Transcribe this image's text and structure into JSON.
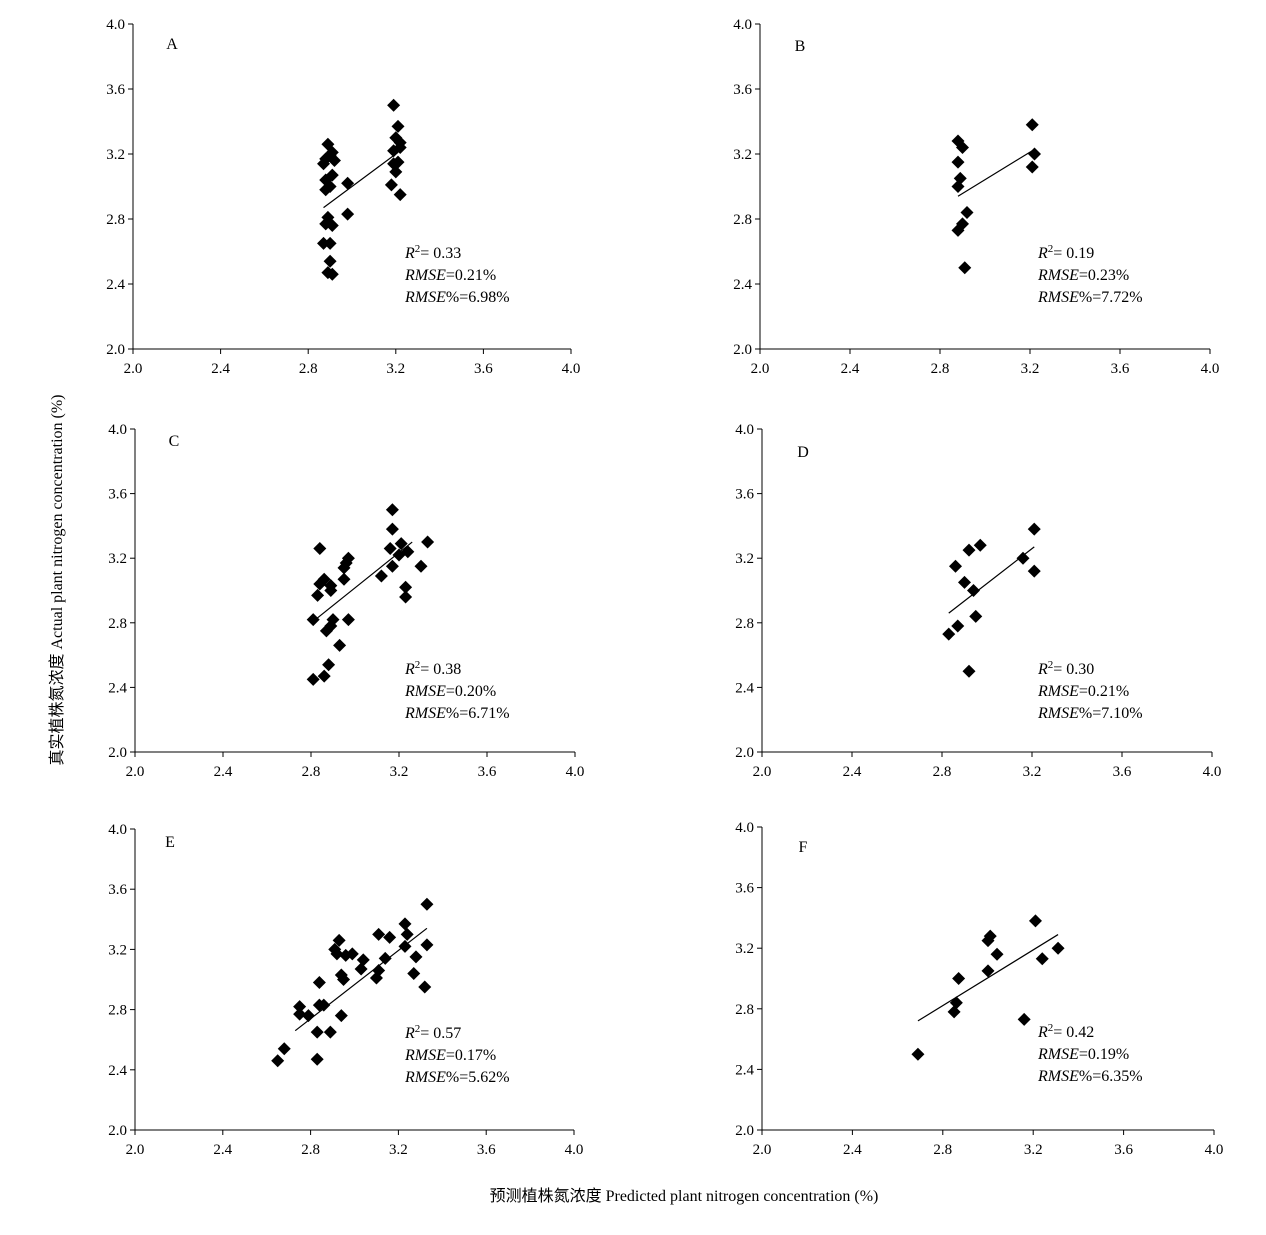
{
  "figure": {
    "xlabel": "预测植株氮浓度 Predicted plant nitrogen concentration (%)",
    "ylabel": "真实植株氮浓度 Actual plant nitrogen concentration (%)"
  },
  "chart_data": [
    {
      "type": "scatter",
      "panel": "A",
      "xlim": [
        2.0,
        4.0
      ],
      "ylim": [
        2.0,
        4.0
      ],
      "xticks": [
        "2.0",
        "2.4",
        "2.8",
        "3.2",
        "3.6",
        "4.0"
      ],
      "yticks": [
        "2.0",
        "2.4",
        "2.8",
        "3.2",
        "3.6",
        "4.0"
      ],
      "stats": {
        "r2": "= 0.33",
        "rmse": "=0.21%",
        "rmse_pct": "%=6.98%"
      },
      "fit": {
        "x": [
          2.87,
          3.21
        ],
        "y": [
          2.87,
          3.21
        ]
      },
      "points": [
        [
          2.89,
          3.26
        ],
        [
          2.91,
          3.21
        ],
        [
          2.88,
          3.17
        ],
        [
          2.92,
          3.16
        ],
        [
          2.87,
          3.14
        ],
        [
          2.9,
          3.19
        ],
        [
          2.91,
          3.07
        ],
        [
          2.88,
          3.04
        ],
        [
          2.9,
          3.0
        ],
        [
          2.88,
          2.98
        ],
        [
          2.89,
          2.81
        ],
        [
          2.88,
          2.77
        ],
        [
          2.91,
          2.76
        ],
        [
          2.87,
          2.65
        ],
        [
          2.9,
          2.65
        ],
        [
          2.9,
          2.54
        ],
        [
          2.89,
          2.47
        ],
        [
          2.91,
          2.46
        ],
        [
          2.98,
          3.02
        ],
        [
          2.98,
          2.83
        ],
        [
          3.19,
          3.5
        ],
        [
          3.21,
          3.37
        ],
        [
          3.2,
          3.3
        ],
        [
          3.22,
          3.27
        ],
        [
          3.19,
          3.22
        ],
        [
          3.22,
          3.24
        ],
        [
          3.21,
          3.15
        ],
        [
          3.19,
          3.14
        ],
        [
          3.2,
          3.09
        ],
        [
          3.18,
          3.01
        ],
        [
          3.22,
          2.95
        ]
      ]
    },
    {
      "type": "scatter",
      "panel": "B",
      "xlim": [
        2.0,
        4.0
      ],
      "ylim": [
        2.0,
        4.0
      ],
      "xticks": [
        "2.0",
        "2.4",
        "2.8",
        "3.2",
        "3.6",
        "4.0"
      ],
      "yticks": [
        "2.0",
        "2.4",
        "2.8",
        "3.2",
        "3.6",
        "4.0"
      ],
      "stats": {
        "r2": "= 0.19",
        "rmse": "=0.23%",
        "rmse_pct": "%=7.72%"
      },
      "fit": {
        "x": [
          2.88,
          3.21
        ],
        "y": [
          2.94,
          3.22
        ]
      },
      "points": [
        [
          2.88,
          3.28
        ],
        [
          2.9,
          3.24
        ],
        [
          2.88,
          3.15
        ],
        [
          2.89,
          3.05
        ],
        [
          2.88,
          3.0
        ],
        [
          2.92,
          2.84
        ],
        [
          2.9,
          2.77
        ],
        [
          2.88,
          2.73
        ],
        [
          2.91,
          2.5
        ],
        [
          3.21,
          3.38
        ],
        [
          3.22,
          3.2
        ],
        [
          3.21,
          3.12
        ]
      ]
    },
    {
      "type": "scatter",
      "panel": "C",
      "xlim": [
        2.0,
        4.0
      ],
      "ylim": [
        2.0,
        4.0
      ],
      "xticks": [
        "2.0",
        "2.4",
        "2.8",
        "3.2",
        "3.6",
        "4.0"
      ],
      "yticks": [
        "2.0",
        "2.4",
        "2.8",
        "3.2",
        "3.6",
        "4.0"
      ],
      "stats": {
        "r2": "= 0.38",
        "rmse": "=0.20%",
        "rmse_pct": "%=6.71%"
      },
      "fit": {
        "x": [
          2.82,
          3.26
        ],
        "y": [
          2.82,
          3.3
        ]
      },
      "points": [
        [
          2.84,
          3.26
        ],
        [
          2.97,
          3.2
        ],
        [
          2.96,
          3.17
        ],
        [
          2.95,
          3.14
        ],
        [
          2.95,
          3.07
        ],
        [
          2.86,
          3.07
        ],
        [
          2.84,
          3.04
        ],
        [
          2.89,
          3.03
        ],
        [
          2.89,
          3.0
        ],
        [
          2.83,
          2.97
        ],
        [
          2.81,
          2.82
        ],
        [
          2.9,
          2.82
        ],
        [
          2.97,
          2.82
        ],
        [
          2.89,
          2.78
        ],
        [
          2.87,
          2.75
        ],
        [
          2.93,
          2.66
        ],
        [
          2.88,
          2.54
        ],
        [
          2.86,
          2.47
        ],
        [
          2.81,
          2.45
        ],
        [
          3.17,
          3.5
        ],
        [
          3.17,
          3.38
        ],
        [
          3.21,
          3.29
        ],
        [
          3.16,
          3.26
        ],
        [
          3.2,
          3.22
        ],
        [
          3.24,
          3.24
        ],
        [
          3.33,
          3.3
        ],
        [
          3.17,
          3.15
        ],
        [
          3.3,
          3.15
        ],
        [
          3.12,
          3.09
        ],
        [
          3.23,
          3.02
        ],
        [
          3.23,
          2.96
        ]
      ]
    },
    {
      "type": "scatter",
      "panel": "D",
      "xlim": [
        2.0,
        4.0
      ],
      "ylim": [
        2.0,
        4.0
      ],
      "xticks": [
        "2.0",
        "2.4",
        "2.8",
        "3.2",
        "3.6",
        "4.0"
      ],
      "yticks": [
        "2.0",
        "2.4",
        "2.8",
        "3.2",
        "3.6",
        "4.0"
      ],
      "stats": {
        "r2": "= 0.30",
        "rmse": "=0.21%",
        "rmse_pct": "%=7.10%"
      },
      "fit": {
        "x": [
          2.83,
          3.21
        ],
        "y": [
          2.86,
          3.27
        ]
      },
      "points": [
        [
          2.97,
          3.28
        ],
        [
          2.92,
          3.25
        ],
        [
          2.86,
          3.15
        ],
        [
          2.9,
          3.05
        ],
        [
          2.94,
          3.0
        ],
        [
          2.95,
          2.84
        ],
        [
          2.87,
          2.78
        ],
        [
          2.83,
          2.73
        ],
        [
          2.92,
          2.5
        ],
        [
          3.21,
          3.38
        ],
        [
          3.16,
          3.2
        ],
        [
          3.21,
          3.12
        ]
      ]
    },
    {
      "type": "scatter",
      "panel": "E",
      "xlim": [
        2.0,
        4.0
      ],
      "ylim": [
        2.0,
        4.0
      ],
      "xticks": [
        "2.0",
        "2.4",
        "2.8",
        "3.2",
        "3.6",
        "4.0"
      ],
      "yticks": [
        "2.0",
        "2.4",
        "2.8",
        "3.2",
        "3.6",
        "4.0"
      ],
      "stats": {
        "r2": "= 0.57",
        "rmse": "=0.17%",
        "rmse_pct": "%=5.62%"
      },
      "fit": {
        "x": [
          2.73,
          3.33
        ],
        "y": [
          2.66,
          3.34
        ]
      },
      "points": [
        [
          3.33,
          3.5
        ],
        [
          3.23,
          3.37
        ],
        [
          3.24,
          3.3
        ],
        [
          3.33,
          3.23
        ],
        [
          3.23,
          3.22
        ],
        [
          3.11,
          3.3
        ],
        [
          3.16,
          3.28
        ],
        [
          2.93,
          3.26
        ],
        [
          2.91,
          3.2
        ],
        [
          2.92,
          3.17
        ],
        [
          2.96,
          3.16
        ],
        [
          2.99,
          3.17
        ],
        [
          3.04,
          3.13
        ],
        [
          3.14,
          3.14
        ],
        [
          3.28,
          3.15
        ],
        [
          3.03,
          3.07
        ],
        [
          3.11,
          3.06
        ],
        [
          3.27,
          3.04
        ],
        [
          2.94,
          3.03
        ],
        [
          2.95,
          3.0
        ],
        [
          3.1,
          3.01
        ],
        [
          2.84,
          2.98
        ],
        [
          3.32,
          2.95
        ],
        [
          2.75,
          2.82
        ],
        [
          2.84,
          2.83
        ],
        [
          2.86,
          2.83
        ],
        [
          2.79,
          2.76
        ],
        [
          2.75,
          2.77
        ],
        [
          2.94,
          2.76
        ],
        [
          2.83,
          2.65
        ],
        [
          2.89,
          2.65
        ],
        [
          2.68,
          2.54
        ],
        [
          2.83,
          2.47
        ],
        [
          2.65,
          2.46
        ]
      ]
    },
    {
      "type": "scatter",
      "panel": "F",
      "xlim": [
        2.0,
        4.0
      ],
      "ylim": [
        2.0,
        4.0
      ],
      "xticks": [
        "2.0",
        "2.4",
        "2.8",
        "3.2",
        "3.6",
        "4.0"
      ],
      "yticks": [
        "2.0",
        "2.4",
        "2.8",
        "3.2",
        "3.6",
        "4.0"
      ],
      "stats": {
        "r2": "= 0.42",
        "rmse": "=0.19%",
        "rmse_pct": "%=6.35%"
      },
      "fit": {
        "x": [
          2.69,
          3.31
        ],
        "y": [
          2.72,
          3.29
        ]
      },
      "points": [
        [
          2.69,
          2.5
        ],
        [
          2.85,
          2.78
        ],
        [
          2.86,
          2.84
        ],
        [
          2.87,
          3.0
        ],
        [
          3.0,
          3.25
        ],
        [
          3.01,
          3.28
        ],
        [
          3.04,
          3.16
        ],
        [
          3.0,
          3.05
        ],
        [
          3.16,
          2.73
        ],
        [
          3.21,
          3.38
        ],
        [
          3.24,
          3.13
        ],
        [
          3.31,
          3.2
        ]
      ]
    }
  ]
}
